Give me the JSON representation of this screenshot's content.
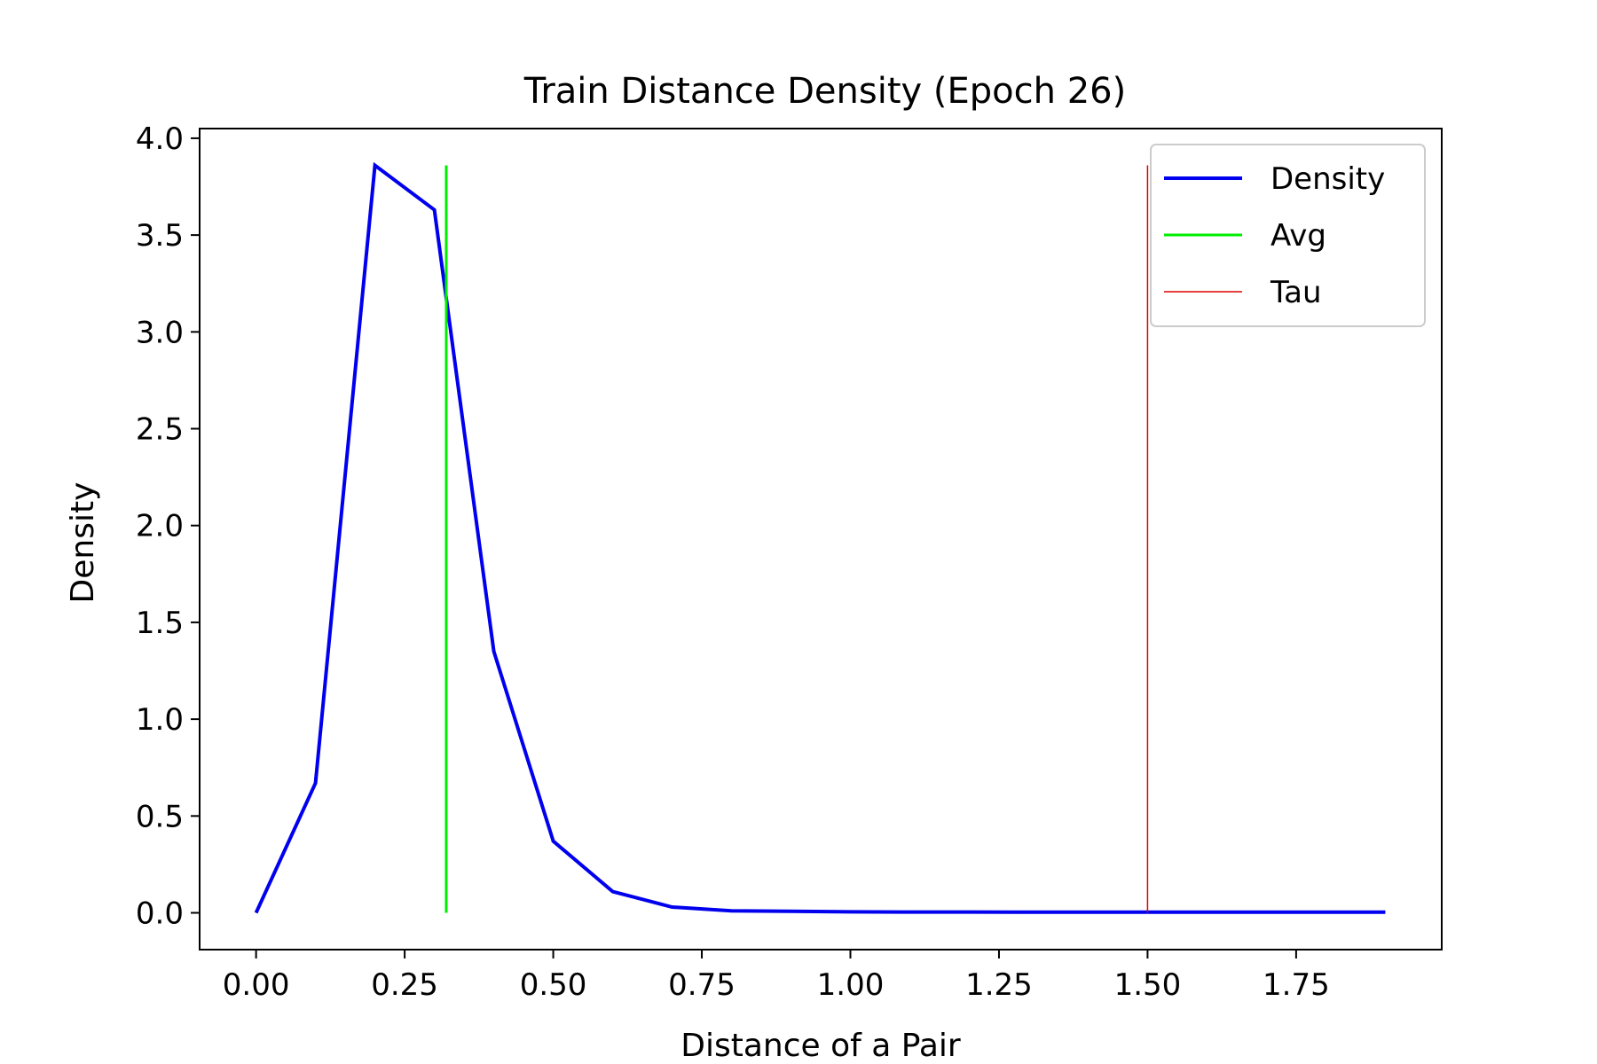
{
  "chart_data": {
    "type": "line",
    "title": "Train Distance Density (Epoch 26)",
    "xlabel": "Distance of a Pair",
    "ylabel": "Density",
    "xlim": [
      -0.095,
      1.995
    ],
    "ylim": [
      -0.19,
      4.05
    ],
    "x_ticks": [
      0.0,
      0.25,
      0.5,
      0.75,
      1.0,
      1.25,
      1.5,
      1.75
    ],
    "x_tick_labels": [
      "0.00",
      "0.25",
      "0.50",
      "0.75",
      "1.00",
      "1.25",
      "1.50",
      "1.75"
    ],
    "y_ticks": [
      0.0,
      0.5,
      1.0,
      1.5,
      2.0,
      2.5,
      3.0,
      3.5,
      4.0
    ],
    "y_tick_labels": [
      "0.0",
      "0.5",
      "1.0",
      "1.5",
      "2.0",
      "2.5",
      "3.0",
      "3.5",
      "4.0"
    ],
    "grid": false,
    "legend_position": "top-right",
    "series": [
      {
        "name": "Density",
        "color": "#0000ee",
        "x": [
          0.0,
          0.1,
          0.2,
          0.3,
          0.4,
          0.5,
          0.6,
          0.7,
          0.8,
          0.9,
          1.0,
          1.1,
          1.2,
          1.3,
          1.4,
          1.5,
          1.6,
          1.7,
          1.8,
          1.9
        ],
        "y": [
          0.0,
          0.67,
          3.86,
          3.63,
          1.35,
          0.37,
          0.11,
          0.03,
          0.01,
          0.008,
          0.005,
          0.004,
          0.004,
          0.003,
          0.003,
          0.003,
          0.003,
          0.003,
          0.003,
          0.003
        ]
      }
    ],
    "vlines": [
      {
        "name": "Avg",
        "color": "#00ee00",
        "x": 0.32,
        "ymin": 0.0,
        "ymax": 3.86
      },
      {
        "name": "Tau",
        "color": "#dd0000",
        "x": 1.5,
        "ymin": 0.0,
        "ymax": 3.86
      }
    ]
  }
}
